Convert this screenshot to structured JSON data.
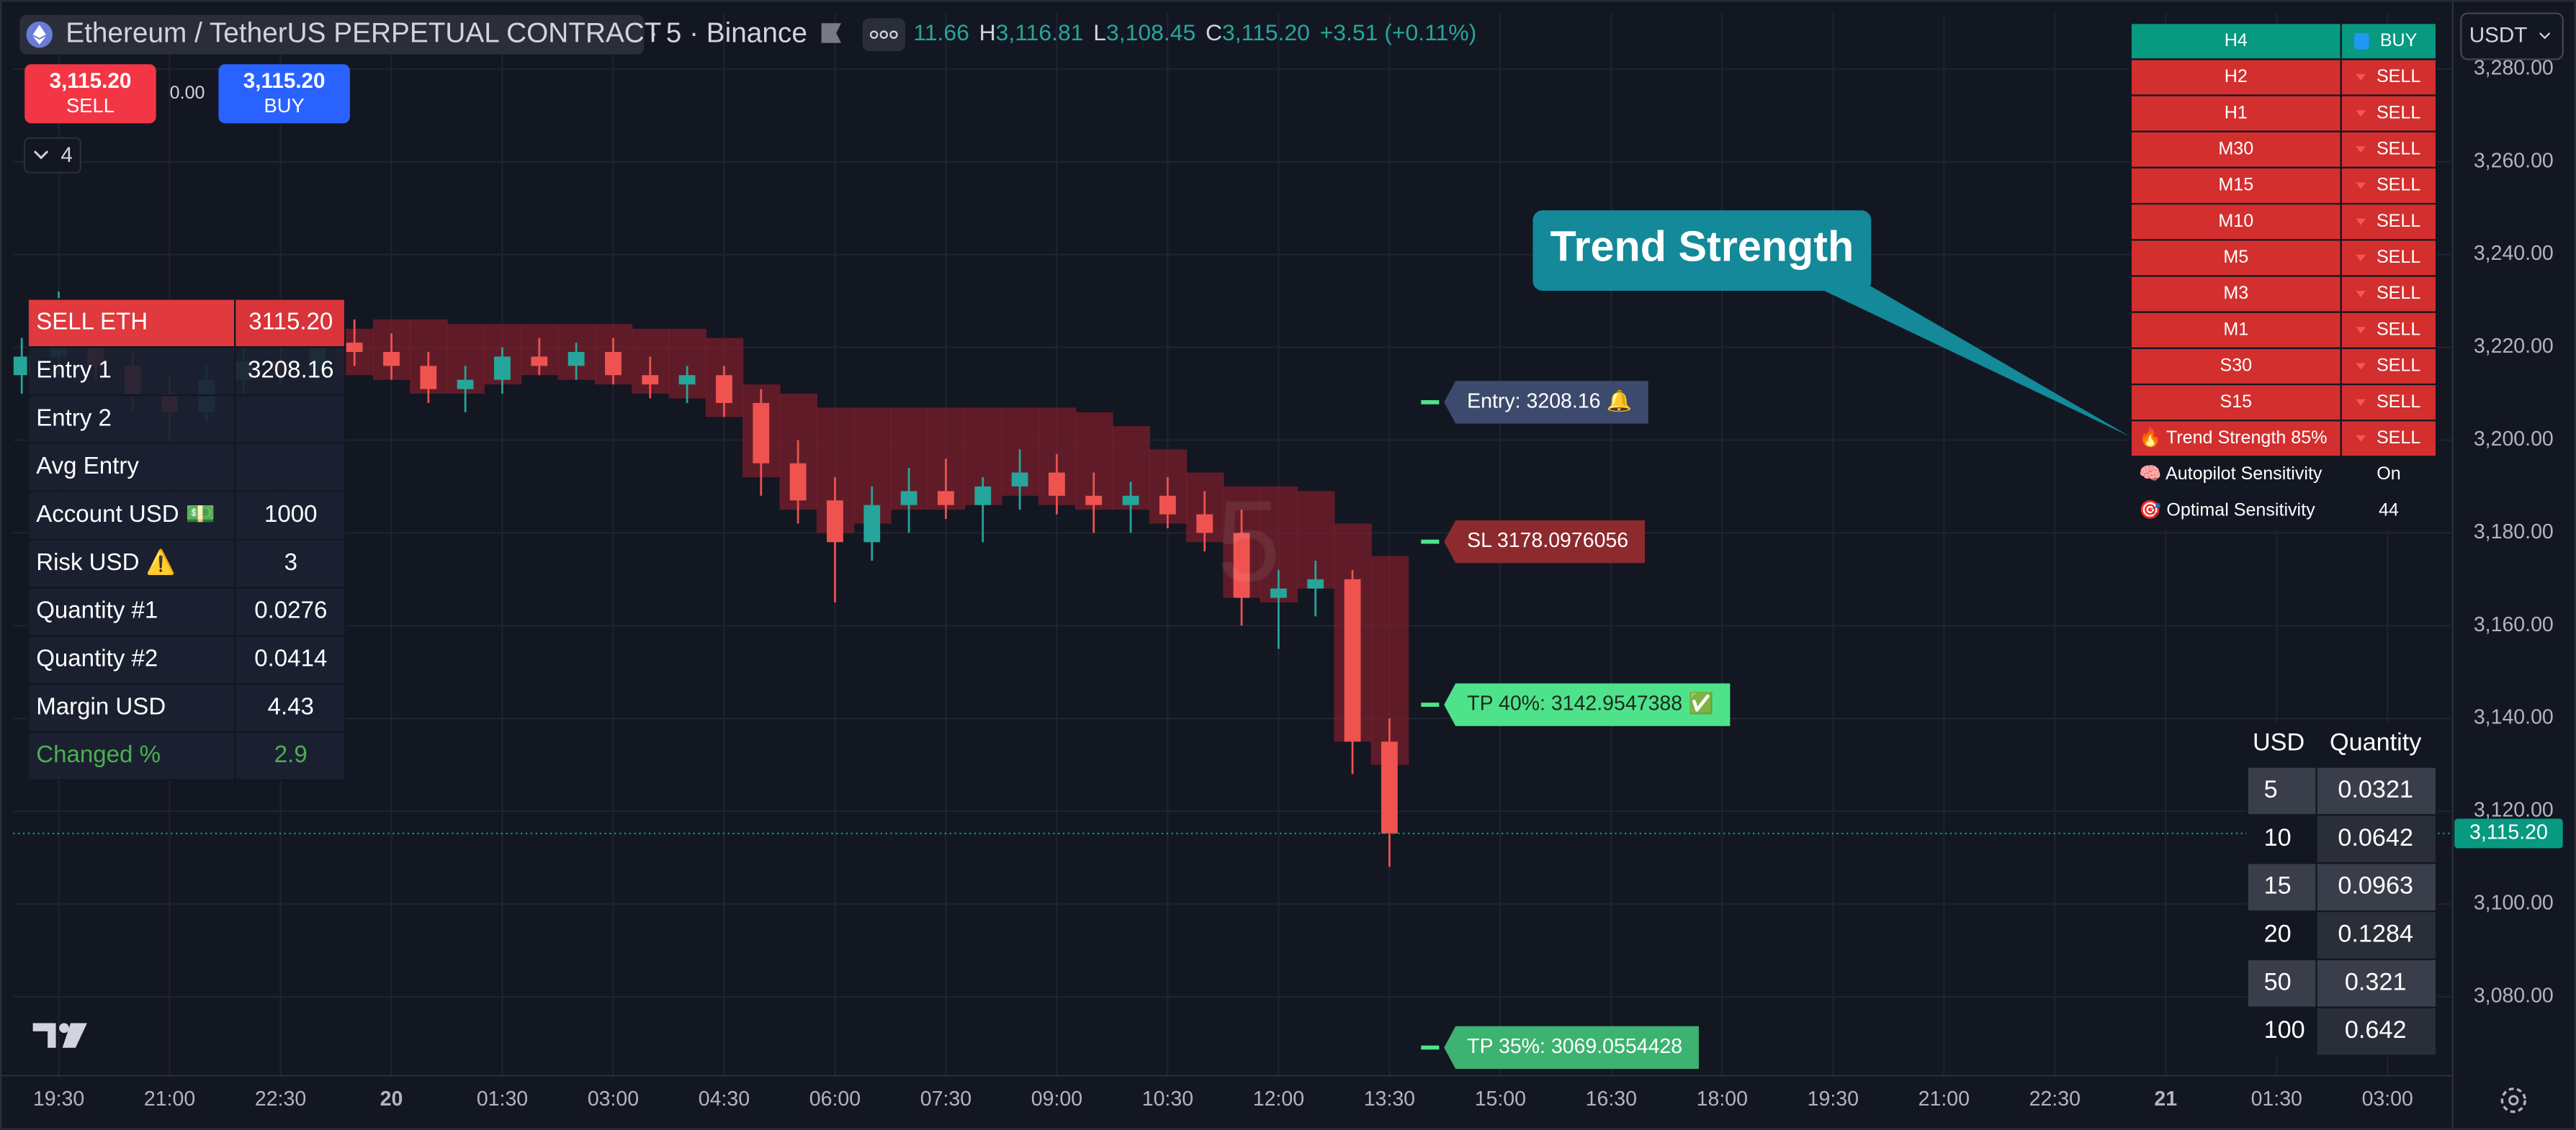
{
  "header": {
    "symbol": "Ethereum / TetherUS PERPETUAL CONTRACT",
    "details": "· 5 · Binance",
    "open_partial": "11.66",
    "ohlc": [
      {
        "label": "H",
        "value": "3,116.81"
      },
      {
        "label": "L",
        "value": "3,108.45"
      },
      {
        "label": "C",
        "value": "3,115.20"
      }
    ],
    "change": "+3.51 (+0.11%)"
  },
  "order_buttons": {
    "sell": {
      "price": "3,115.20",
      "label": "SELL"
    },
    "spread": "0.00",
    "buy": {
      "price": "3,115.20",
      "label": "BUY"
    }
  },
  "indicators_count": "4",
  "currency": "USDT",
  "watermark": "5",
  "chart_data": {
    "type": "candlestick",
    "xlim": [
      -37,
      1943
    ],
    "ylim": [
      3063,
      3292
    ],
    "grid": true,
    "xticks": [
      {
        "value": 0,
        "label": "19:30"
      },
      {
        "value": 90,
        "label": "21:00"
      },
      {
        "value": 180,
        "label": "22:30"
      },
      {
        "value": 270,
        "label": "20"
      },
      {
        "value": 360,
        "label": "01:30"
      },
      {
        "value": 450,
        "label": "03:00"
      },
      {
        "value": 540,
        "label": "04:30"
      },
      {
        "value": 630,
        "label": "06:00"
      },
      {
        "value": 720,
        "label": "07:30"
      },
      {
        "value": 810,
        "label": "09:00"
      },
      {
        "value": 900,
        "label": "10:30"
      },
      {
        "value": 990,
        "label": "12:00"
      },
      {
        "value": 1080,
        "label": "13:30"
      },
      {
        "value": 1170,
        "label": "15:00"
      },
      {
        "value": 1260,
        "label": "16:30"
      },
      {
        "value": 1350,
        "label": "18:00"
      },
      {
        "value": 1440,
        "label": "19:30"
      },
      {
        "value": 1530,
        "label": "21:00"
      },
      {
        "value": 1620,
        "label": "22:30"
      },
      {
        "value": 1710,
        "label": "21"
      },
      {
        "value": 1800,
        "label": "01:30"
      },
      {
        "value": 1890,
        "label": "03:00"
      }
    ],
    "yticks": [
      {
        "value": 3080,
        "label": "3,080.00"
      },
      {
        "value": 3100,
        "label": "3,100.00"
      },
      {
        "value": 3120,
        "label": "3,120.00"
      },
      {
        "value": 3140,
        "label": "3,140.00"
      },
      {
        "value": 3160,
        "label": "3,160.00"
      },
      {
        "value": 3180,
        "label": "3,180.00"
      },
      {
        "value": 3200,
        "label": "3,200.00"
      },
      {
        "value": 3220,
        "label": "3,220.00"
      },
      {
        "value": 3240,
        "label": "3,240.00"
      },
      {
        "value": 3260,
        "label": "3,260.00"
      },
      {
        "value": 3280,
        "label": "3,280.00"
      }
    ],
    "candles": {
      "up_color": "#26a69a",
      "down_color": "#ef5350",
      "x": [
        -30,
        0,
        30,
        60,
        90,
        120,
        150,
        180,
        210,
        240,
        270,
        300,
        330,
        360,
        390,
        420,
        450,
        480,
        510,
        540,
        570,
        600,
        630,
        660,
        690,
        720,
        750,
        780,
        810,
        840,
        870,
        900,
        930,
        960,
        990,
        1020,
        1050,
        1080
      ],
      "open": [
        3214,
        3218,
        3222,
        3216,
        3210,
        3206,
        3213,
        3217,
        3215,
        3221,
        3219,
        3216,
        3211,
        3213,
        3218,
        3216,
        3219,
        3214,
        3212,
        3214,
        3208,
        3195,
        3187,
        3178,
        3186,
        3189,
        3186,
        3190,
        3193,
        3188,
        3186,
        3188,
        3184,
        3180,
        3166,
        3168,
        3170,
        3135
      ],
      "high": [
        3222,
        3232,
        3226,
        3219,
        3214,
        3216,
        3220,
        3222,
        3224,
        3226,
        3223,
        3219,
        3216,
        3220,
        3222,
        3221,
        3222,
        3218,
        3216,
        3216,
        3211,
        3200,
        3192,
        3190,
        3194,
        3196,
        3192,
        3198,
        3197,
        3193,
        3191,
        3192,
        3189,
        3185,
        3172,
        3174,
        3172,
        3140
      ],
      "low": [
        3210,
        3214,
        3213,
        3206,
        3200,
        3204,
        3210,
        3212,
        3213,
        3216,
        3213,
        3208,
        3206,
        3210,
        3214,
        3213,
        3212,
        3209,
        3208,
        3205,
        3188,
        3182,
        3165,
        3174,
        3180,
        3183,
        3178,
        3185,
        3184,
        3180,
        3180,
        3181,
        3176,
        3160,
        3155,
        3162,
        3128,
        3108
      ],
      "close": [
        3218,
        3222,
        3216,
        3210,
        3206,
        3213,
        3217,
        3215,
        3221,
        3219,
        3216,
        3211,
        3213,
        3218,
        3216,
        3219,
        3214,
        3212,
        3214,
        3208,
        3195,
        3187,
        3178,
        3186,
        3189,
        3186,
        3190,
        3193,
        3188,
        3186,
        3188,
        3184,
        3180,
        3166,
        3168,
        3170,
        3135,
        3115.2
      ]
    },
    "cloud": {
      "color": "#7a1f2b",
      "x": [
        240,
        270,
        300,
        330,
        360,
        390,
        420,
        450,
        480,
        510,
        540,
        570,
        600,
        630,
        660,
        690,
        720,
        750,
        780,
        810,
        840,
        870,
        900,
        930,
        960,
        990,
        1020,
        1050,
        1080
      ],
      "upper": [
        3224,
        3226,
        3226,
        3225,
        3225,
        3225,
        3225,
        3225,
        3224,
        3224,
        3222,
        3212,
        3210,
        3207,
        3207,
        3207,
        3207,
        3207,
        3207,
        3207,
        3206,
        3203,
        3198,
        3193,
        3190,
        3190,
        3189,
        3182,
        3175
      ],
      "lower": [
        3214,
        3213,
        3210,
        3210,
        3212,
        3214,
        3213,
        3212,
        3210,
        3209,
        3205,
        3192,
        3185,
        3180,
        3182,
        3185,
        3185,
        3186,
        3188,
        3186,
        3185,
        3185,
        3182,
        3178,
        3166,
        3165,
        3168,
        3135,
        3130
      ]
    },
    "levels": [
      {
        "value": 3208.16,
        "label": "Entry: 3208.16 🔔",
        "color": "#3c4a6e",
        "text_color": "#ffffff"
      },
      {
        "value": 3178.0976056,
        "label": "SL 3178.0976056",
        "color": "#8c2a2e",
        "text_color": "#ffffff"
      },
      {
        "value": 3142.9547388,
        "label": "TP 40%: 3142.9547388 ✅",
        "color": "#4ee38a",
        "text_color": "#1b2a20"
      },
      {
        "value": 3069.0554428,
        "label": "TP 35%: 3069.0554428",
        "color": "#3cb371",
        "text_color": "#ffffff"
      }
    ],
    "last_price": {
      "value": 3115.2,
      "label": "3,115.20",
      "color": "#089981"
    }
  },
  "trade_table": {
    "rows": [
      [
        "SELL ETH",
        "3115.20"
      ],
      [
        "Entry 1",
        "3208.16"
      ],
      [
        "Entry 2"
      ],
      [
        "Avg Entry"
      ],
      [
        "Account USD 💵",
        "1000"
      ],
      [
        "Risk USD ⚠️",
        "3"
      ],
      [
        "Quantity #1",
        "0.0276"
      ],
      [
        "Quantity #2",
        "0.0414"
      ],
      [
        "Margin USD",
        "4.43"
      ],
      [
        "Changed %",
        "2.9"
      ]
    ]
  },
  "timeframe_table": {
    "rows": [
      {
        "tf": "H4",
        "signal": "BUY",
        "color": "#089981"
      },
      {
        "tf": "H2",
        "signal": "SELL",
        "color": "#d32f2f"
      },
      {
        "tf": "H1",
        "signal": "SELL",
        "color": "#d32f2f"
      },
      {
        "tf": "M30",
        "signal": "SELL",
        "color": "#d32f2f"
      },
      {
        "tf": "M15",
        "signal": "SELL",
        "color": "#d32f2f"
      },
      {
        "tf": "M10",
        "signal": "SELL",
        "color": "#d32f2f"
      },
      {
        "tf": "M5",
        "signal": "SELL",
        "color": "#d32f2f"
      },
      {
        "tf": "M3",
        "signal": "SELL",
        "color": "#d32f2f"
      },
      {
        "tf": "M1",
        "signal": "SELL",
        "color": "#d32f2f"
      },
      {
        "tf": "S30",
        "signal": "SELL",
        "color": "#d32f2f"
      },
      {
        "tf": "S15",
        "signal": "SELL",
        "color": "#d32f2f"
      },
      {
        "tf": "🔥 Trend Strength 85%",
        "signal": "SELL",
        "color": "#d32f2f"
      },
      {
        "tf": "🧠 Autopilot Sensitivity",
        "signal": "On",
        "color": "#131722"
      },
      {
        "tf": "🎯 Optimal Sensitivity",
        "signal": "44",
        "color": "#131722"
      }
    ]
  },
  "callout": "Trend Strength",
  "quantity_table": {
    "header": [
      "USD",
      "Quantity"
    ],
    "rows": [
      [
        "5",
        "0.0321"
      ],
      [
        "10",
        "0.0642"
      ],
      [
        "15",
        "0.0963"
      ],
      [
        "20",
        "0.1284"
      ],
      [
        "50",
        "0.321"
      ],
      [
        "100",
        "0.642"
      ]
    ]
  }
}
